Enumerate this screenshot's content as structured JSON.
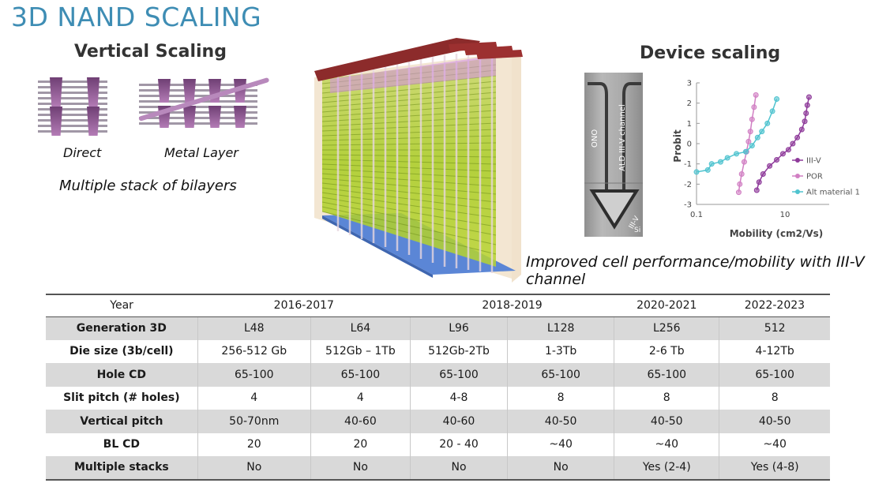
{
  "title": "3D NAND SCALING",
  "vertical_scaling": {
    "heading": "Vertical Scaling",
    "diagram_labels": [
      "Direct",
      "Metal Layer"
    ],
    "caption": "Multiple stack of bilayers"
  },
  "device_scaling": {
    "heading": "Device scaling",
    "tem_labels": {
      "ono": "ONO",
      "channel": "ALD III-V channel",
      "iiiv": "III-V",
      "si": "Si"
    },
    "caption": "Improved cell performance/mobility with III-V channel"
  },
  "chart_data": {
    "type": "scatter",
    "title": "",
    "xlabel": "Mobility (cm2/Vs)",
    "ylabel": "Probit",
    "xscale": "log",
    "xlim": [
      0.1,
      100
    ],
    "ylim": [
      -3,
      3
    ],
    "x_ticks": [
      "0.1",
      "10"
    ],
    "y_ticks": [
      "3",
      "2",
      "1",
      "0",
      "-1",
      "-2",
      "-3"
    ],
    "legend_position": "lower right",
    "grid": false,
    "series": [
      {
        "name": "III-V",
        "color": "#8e3a9a",
        "x": [
          2.3,
          2.6,
          3.2,
          4.5,
          6.5,
          9,
          12,
          15,
          19,
          24,
          28,
          30,
          32,
          35
        ],
        "y": [
          -2.3,
          -1.9,
          -1.5,
          -1.1,
          -0.8,
          -0.5,
          -0.3,
          0.0,
          0.3,
          0.7,
          1.1,
          1.5,
          1.9,
          2.3
        ]
      },
      {
        "name": "POR",
        "color": "#d17fc3",
        "x": [
          0.9,
          0.95,
          1.05,
          1.2,
          1.35,
          1.5,
          1.65,
          1.8,
          2.0,
          2.2
        ],
        "y": [
          -2.4,
          -2.0,
          -1.5,
          -0.9,
          -0.4,
          0.1,
          0.6,
          1.2,
          1.8,
          2.4
        ]
      },
      {
        "name": "Alt material 1",
        "color": "#4fc3cf",
        "x": [
          0.1,
          0.18,
          0.22,
          0.35,
          0.5,
          0.8,
          1.3,
          1.8,
          2.4,
          3.0,
          4.0,
          5.2,
          6.5
        ],
        "y": [
          -1.4,
          -1.3,
          -1.0,
          -0.9,
          -0.7,
          -0.5,
          -0.4,
          -0.1,
          0.3,
          0.6,
          1.0,
          1.6,
          2.2
        ]
      }
    ]
  },
  "table": {
    "year_row": {
      "label": "Year",
      "groups": [
        {
          "label": "2016-2017",
          "span": 2
        },
        {
          "label": "2018-2019",
          "span": 2
        },
        {
          "label": "2020-2021",
          "span": 1
        },
        {
          "label": "2022-2023",
          "span": 1
        }
      ]
    },
    "rows": [
      {
        "label": "Generation 3D",
        "cells": [
          "L48",
          "L64",
          "L96",
          "L128",
          "L256",
          "512"
        ]
      },
      {
        "label": "Die size (3b/cell)",
        "cells": [
          "256-512 Gb",
          "512Gb – 1Tb",
          "512Gb-2Tb",
          "1-3Tb",
          "2-6 Tb",
          "4-12Tb"
        ]
      },
      {
        "label": "Hole CD",
        "cells": [
          "65-100",
          "65-100",
          "65-100",
          "65-100",
          "65-100",
          "65-100"
        ]
      },
      {
        "label": "Slit pitch (# holes)",
        "cells": [
          "4",
          "4",
          "4-8",
          "8",
          "8",
          "8"
        ]
      },
      {
        "label": "Vertical pitch",
        "cells": [
          "50-70nm",
          "40-60",
          "40-60",
          "40-50",
          "40-50",
          "40-50"
        ]
      },
      {
        "label": "BL CD",
        "cells": [
          "20",
          "20",
          "20 - 40",
          "~40",
          "~40",
          "~40"
        ]
      },
      {
        "label": "Multiple stacks",
        "cells": [
          "No",
          "No",
          "No",
          "No",
          "Yes (2-4)",
          "Yes (4-8)"
        ]
      }
    ]
  },
  "colors": {
    "title": "#3e8db4",
    "table_band": "#d9d9d9",
    "iiiv": "#8e3a9a",
    "por": "#d17fc3",
    "alt": "#4fc3cf"
  }
}
